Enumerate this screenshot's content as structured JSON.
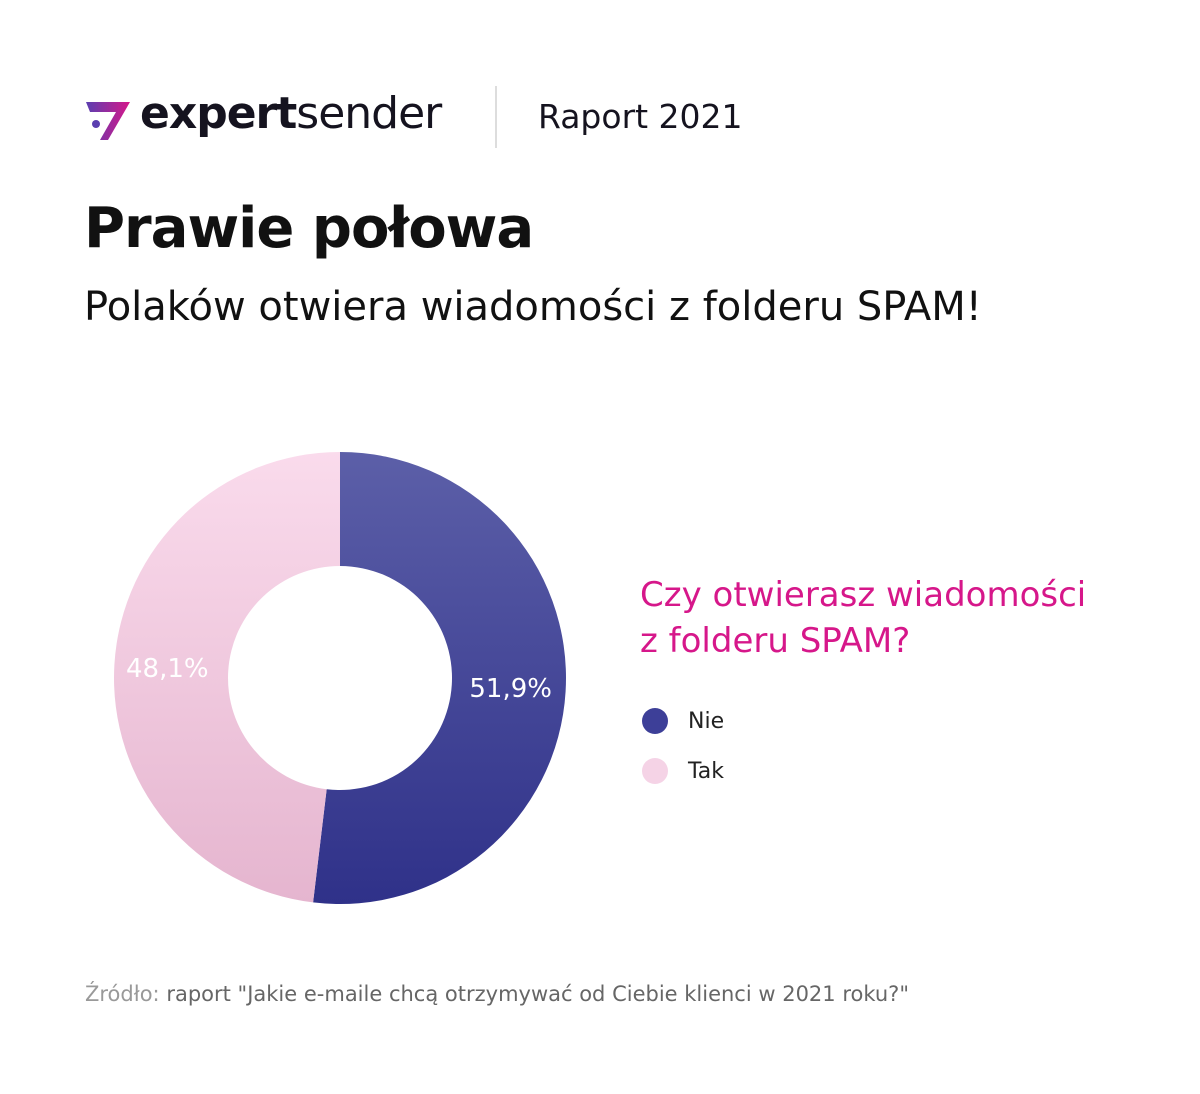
{
  "header": {
    "brand_bold": "expert",
    "brand_light": "sender",
    "report": "Raport 2021"
  },
  "title": "Prawie połowa",
  "subtitle": "Polaków otwiera wiadomości z folderu SPAM!",
  "chart_data": {
    "type": "pie",
    "donut": true,
    "title": "Czy otwierasz wiadomości z folderu SPAM?",
    "title_color": "#d6178a",
    "categories": [
      "Nie",
      "Tak"
    ],
    "values": [
      51.9,
      48.1
    ],
    "labels": [
      "51,9%",
      "48,1%"
    ],
    "colors": [
      "#3a3c94",
      "#f3cfe3"
    ],
    "legend": "right"
  },
  "question_lines": [
    "Czy otwierasz wiadomości",
    "z folderu SPAM?"
  ],
  "source": {
    "label": "Źródło:",
    "text": "raport \"Jakie e-maile chcą otrzymywać od Ciebie klienci w 2021 roku?\""
  }
}
